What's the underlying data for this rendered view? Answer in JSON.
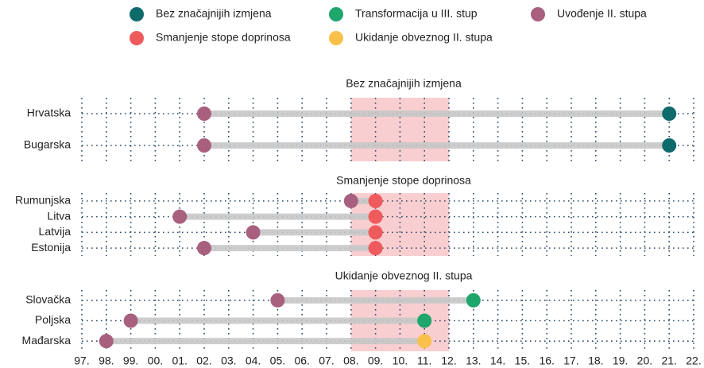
{
  "chart_data": {
    "type": "dumbbell",
    "legend": [
      {
        "name": "Bez značajnijih izmjena",
        "color": "#0f6a6c"
      },
      {
        "name": "Transformacija u III. stup",
        "color": "#1ea66c"
      },
      {
        "name": "Uvođenje II. stupa",
        "color": "#a8607e"
      },
      {
        "name": "Smanjenje stope doprinosa",
        "color": "#ef5b5d"
      },
      {
        "name": "Ukidanje obveznog II. stupa",
        "color": "#f9c14b"
      }
    ],
    "xlim": [
      1997,
      2022
    ],
    "xticks": [
      {
        "value": 1997,
        "label": "97."
      },
      {
        "value": 1998,
        "label": "98."
      },
      {
        "value": 1999,
        "label": "99."
      },
      {
        "value": 2000,
        "label": "00."
      },
      {
        "value": 2001,
        "label": "01."
      },
      {
        "value": 2002,
        "label": "02."
      },
      {
        "value": 2003,
        "label": "03."
      },
      {
        "value": 2004,
        "label": "04."
      },
      {
        "value": 2005,
        "label": "05."
      },
      {
        "value": 2006,
        "label": "06."
      },
      {
        "value": 2007,
        "label": "07."
      },
      {
        "value": 2008,
        "label": "08."
      },
      {
        "value": 2009,
        "label": "09."
      },
      {
        "value": 2010,
        "label": "10."
      },
      {
        "value": 2011,
        "label": "11."
      },
      {
        "value": 2012,
        "label": "12."
      },
      {
        "value": 2013,
        "label": "13."
      },
      {
        "value": 2014,
        "label": "14."
      },
      {
        "value": 2015,
        "label": "15."
      },
      {
        "value": 2016,
        "label": "16."
      },
      {
        "value": 2017,
        "label": "17."
      },
      {
        "value": 2018,
        "label": "18."
      },
      {
        "value": 2019,
        "label": "19."
      },
      {
        "value": 2020,
        "label": "20."
      },
      {
        "value": 2021,
        "label": "21."
      },
      {
        "value": 2022,
        "label": "22."
      }
    ],
    "highlight": [
      2008,
      2012
    ],
    "start_series": 2,
    "panels": [
      {
        "title": "Bez značajnijih izmjena",
        "categories": [
          "Hrvatska",
          "Bugarska"
        ],
        "start": [
          2002,
          2002
        ],
        "end": [
          2021,
          2021
        ],
        "end_series": [
          0,
          0
        ]
      },
      {
        "title": "Smanjenje stope doprinosa",
        "categories": [
          "Rumunjska",
          "Litva",
          "Latvija",
          "Estonija"
        ],
        "start": [
          2008,
          2001,
          2004,
          2002
        ],
        "end": [
          2009,
          2009,
          2009,
          2009
        ],
        "end_series": [
          3,
          3,
          3,
          3
        ]
      },
      {
        "title": "Ukidanje obveznog II. stupa",
        "categories": [
          "Slovačka",
          "Poljska",
          "Mađarska"
        ],
        "start": [
          2005,
          1999,
          1998
        ],
        "end": [
          2013,
          2011,
          2011
        ],
        "end_series": [
          1,
          1,
          4
        ]
      }
    ]
  }
}
